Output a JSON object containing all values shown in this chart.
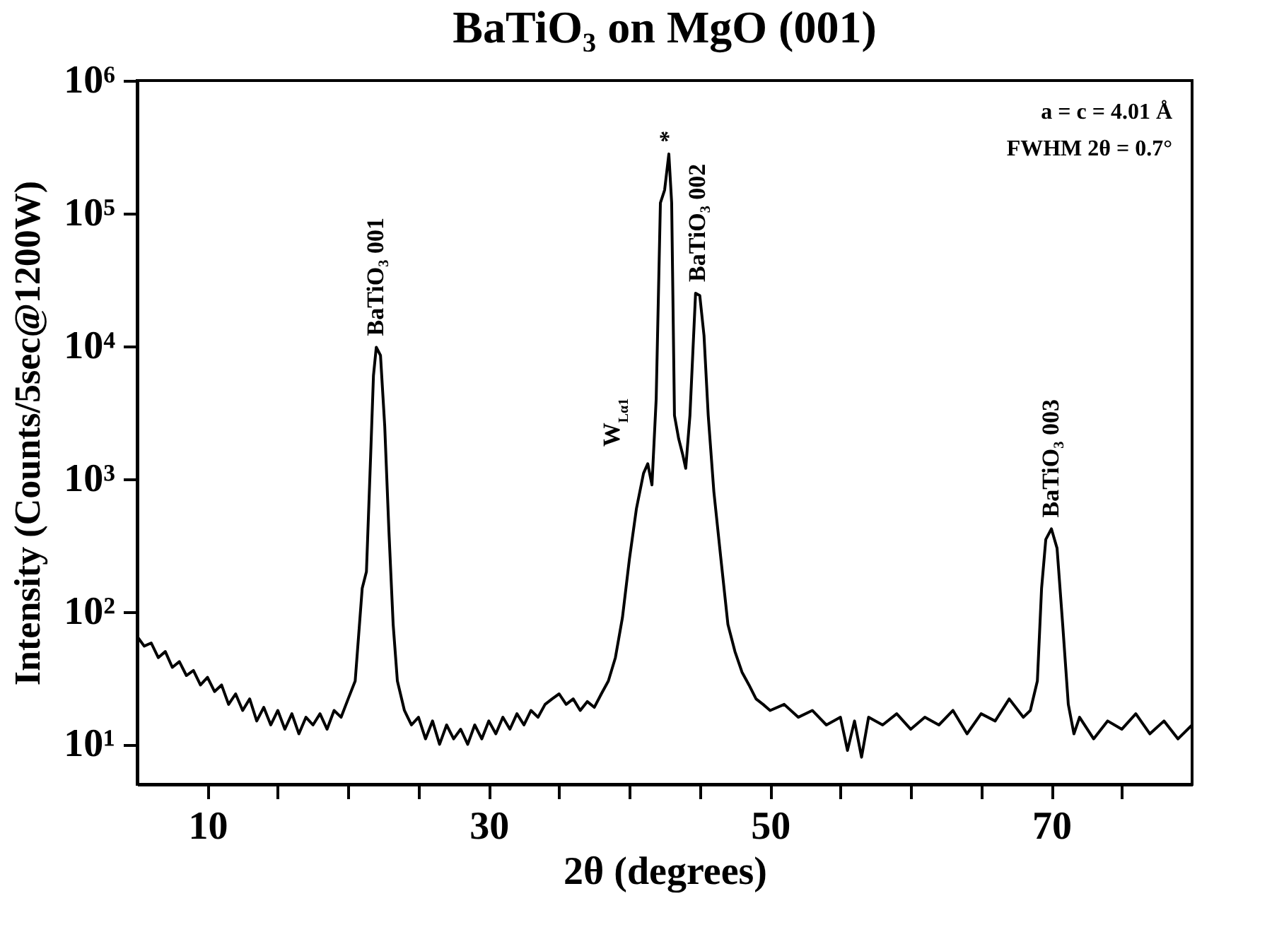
{
  "chart_data": {
    "type": "line",
    "title": "BaTiO₃ on MgO (001)",
    "xlabel": "2θ (degrees)",
    "ylabel": "Intensity (Counts/5sec@1200W)",
    "log": "y",
    "grid": false,
    "legend": false,
    "marker": "none",
    "line_style": "solid",
    "xlim": [
      5,
      80
    ],
    "xticks": [
      10,
      {
        "value": 15,
        "label": null
      },
      {
        "value": 20,
        "label": null
      },
      {
        "value": 25,
        "label": null
      },
      30,
      {
        "value": 35,
        "label": null
      },
      {
        "value": 40,
        "label": null
      },
      {
        "value": 45,
        "label": null
      },
      50,
      {
        "value": 55,
        "label": null
      },
      {
        "value": 60,
        "label": null
      },
      {
        "value": 65,
        "label": null
      },
      70,
      {
        "value": 75,
        "label": null
      }
    ],
    "ylim": [
      5,
      1000000
    ],
    "yticks": [
      {
        "value": 10,
        "label": "10¹"
      },
      {
        "value": 100,
        "label": "10²"
      },
      {
        "value": 1000,
        "label": "10³"
      },
      {
        "value": 10000,
        "label": "10⁴"
      },
      {
        "value": 100000,
        "label": "10⁵"
      },
      {
        "value": 1000000,
        "label": "10⁶"
      }
    ],
    "series": [
      {
        "color": "#000000",
        "x": [
          5,
          5.5,
          6,
          6.5,
          7,
          7.5,
          8,
          8.5,
          9,
          9.5,
          10,
          10.5,
          11,
          11.5,
          12,
          12.5,
          13,
          13.5,
          14,
          14.5,
          15,
          15.5,
          16,
          16.5,
          17,
          17.5,
          18,
          18.5,
          19,
          19.5,
          20,
          20.5,
          21,
          21.3,
          21.6,
          21.8,
          22,
          22.3,
          22.6,
          22.9,
          23.2,
          23.5,
          24,
          24.5,
          25,
          25.5,
          26,
          26.5,
          27,
          27.5,
          28,
          28.5,
          29,
          29.5,
          30,
          30.5,
          31,
          31.5,
          32,
          32.5,
          33,
          33.5,
          34,
          34.5,
          35,
          35.5,
          36,
          36.5,
          37,
          37.5,
          38,
          38.5,
          39,
          39.5,
          40,
          40.5,
          41,
          41.3,
          41.6,
          41.9,
          42.2,
          42.5,
          42.8,
          43,
          43.2,
          43.5,
          43.8,
          44,
          44.3,
          44.7,
          45,
          45.3,
          45.6,
          46,
          46.5,
          47,
          47.5,
          48,
          48.5,
          49,
          49.5,
          50,
          51,
          52,
          53,
          54,
          55,
          55.5,
          56,
          56.5,
          57,
          58,
          59,
          60,
          61,
          62,
          63,
          64,
          65,
          66,
          67,
          68,
          68.5,
          69,
          69.3,
          69.6,
          70,
          70.4,
          70.8,
          71.2,
          71.6,
          72,
          73,
          74,
          75,
          76,
          77,
          78,
          79,
          80
        ],
        "values": [
          65,
          55,
          58,
          45,
          50,
          38,
          42,
          33,
          36,
          28,
          32,
          25,
          28,
          20,
          24,
          18,
          22,
          15,
          19,
          14,
          18,
          13,
          17,
          12,
          16,
          14,
          17,
          13,
          18,
          16,
          22,
          30,
          150,
          200,
          1500,
          6000,
          9800,
          8500,
          2500,
          400,
          80,
          30,
          18,
          14,
          16,
          11,
          15,
          10,
          14,
          11,
          13,
          10,
          14,
          11,
          15,
          12,
          16,
          13,
          17,
          14,
          18,
          16,
          20,
          22,
          24,
          20,
          22,
          18,
          21,
          19,
          24,
          30,
          45,
          90,
          250,
          600,
          1100,
          1300,
          900,
          4000,
          120000,
          150000,
          280000,
          120000,
          3000,
          2000,
          1500,
          1200,
          3000,
          25000,
          24000,
          12000,
          3000,
          800,
          250,
          80,
          50,
          35,
          28,
          22,
          20,
          18,
          20,
          16,
          18,
          14,
          16,
          9,
          15,
          8,
          16,
          14,
          17,
          13,
          16,
          14,
          18,
          12,
          17,
          15,
          22,
          16,
          18,
          30,
          150,
          350,
          420,
          300,
          80,
          20,
          12,
          16,
          11,
          15,
          13,
          17,
          12,
          15,
          11,
          14
        ]
      }
    ],
    "annotations": [
      {
        "text": "BaTiO₃ 001",
        "x": 22,
        "y": 9800
      },
      {
        "text": "W$_{Lα1}$",
        "x": 41.3,
        "y": 1300
      },
      {
        "text": "*",
        "x": 42.8,
        "y": 280000
      },
      {
        "text": "BaTiO₃ 002",
        "x": 44.85,
        "y": 25000
      },
      {
        "text": "BaTiO₃ 003",
        "x": 70,
        "y": 420
      },
      "a = c = 4.01 Å",
      "FWHM 2θ = 0.7°"
    ]
  }
}
